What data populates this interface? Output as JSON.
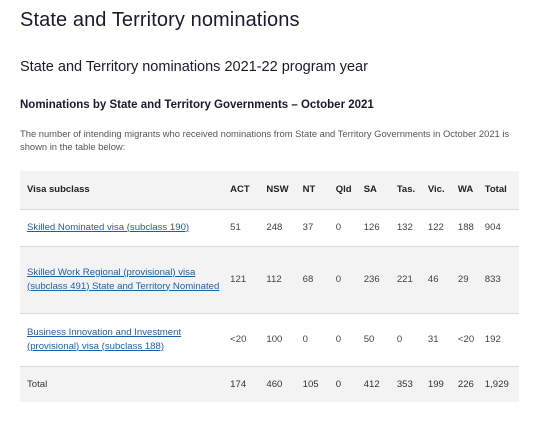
{
  "page": {
    "title": "State and Territory nominations",
    "subtitle": "State and Territory nominations 2021-22 program year",
    "section_heading": "Nominations by State and Territory Governments – October 2021",
    "intro": "The number of intending migrants who received nominations from State and Territory Governments in October 2021 is shown in the table below:"
  },
  "table": {
    "headers": [
      "Visa subclass",
      "ACT",
      "NSW",
      "NT",
      "Qld",
      "SA",
      "Tas.",
      "Vic.",
      "WA",
      "Total"
    ],
    "rows": [
      {
        "label": "Skilled Nominated visa (subclass 190)",
        "cells": [
          "51",
          "248",
          "37",
          "0",
          "126",
          "132",
          "122",
          "188",
          "904"
        ]
      },
      {
        "label": "Skilled Work Regional (provisional) visa (subclass 491) State and Territory Nominated",
        "cells": [
          "121",
          "112",
          "68",
          "0",
          "236",
          "221",
          "46",
          "29",
          "833"
        ]
      },
      {
        "label": "Business Innovation and Investment (provisional) visa (subclass 188)",
        "cells": [
          "<20",
          "100",
          "0",
          "0",
          "50",
          "0",
          "31",
          "<20",
          "192"
        ]
      }
    ],
    "total_row": {
      "label": "Total",
      "cells": [
        "174",
        "460",
        "105",
        "0",
        "412",
        "353",
        "199",
        "226",
        "1,929"
      ]
    }
  },
  "colors": {
    "link": "#1f5fa6",
    "header_bg": "#f3f3f3"
  }
}
